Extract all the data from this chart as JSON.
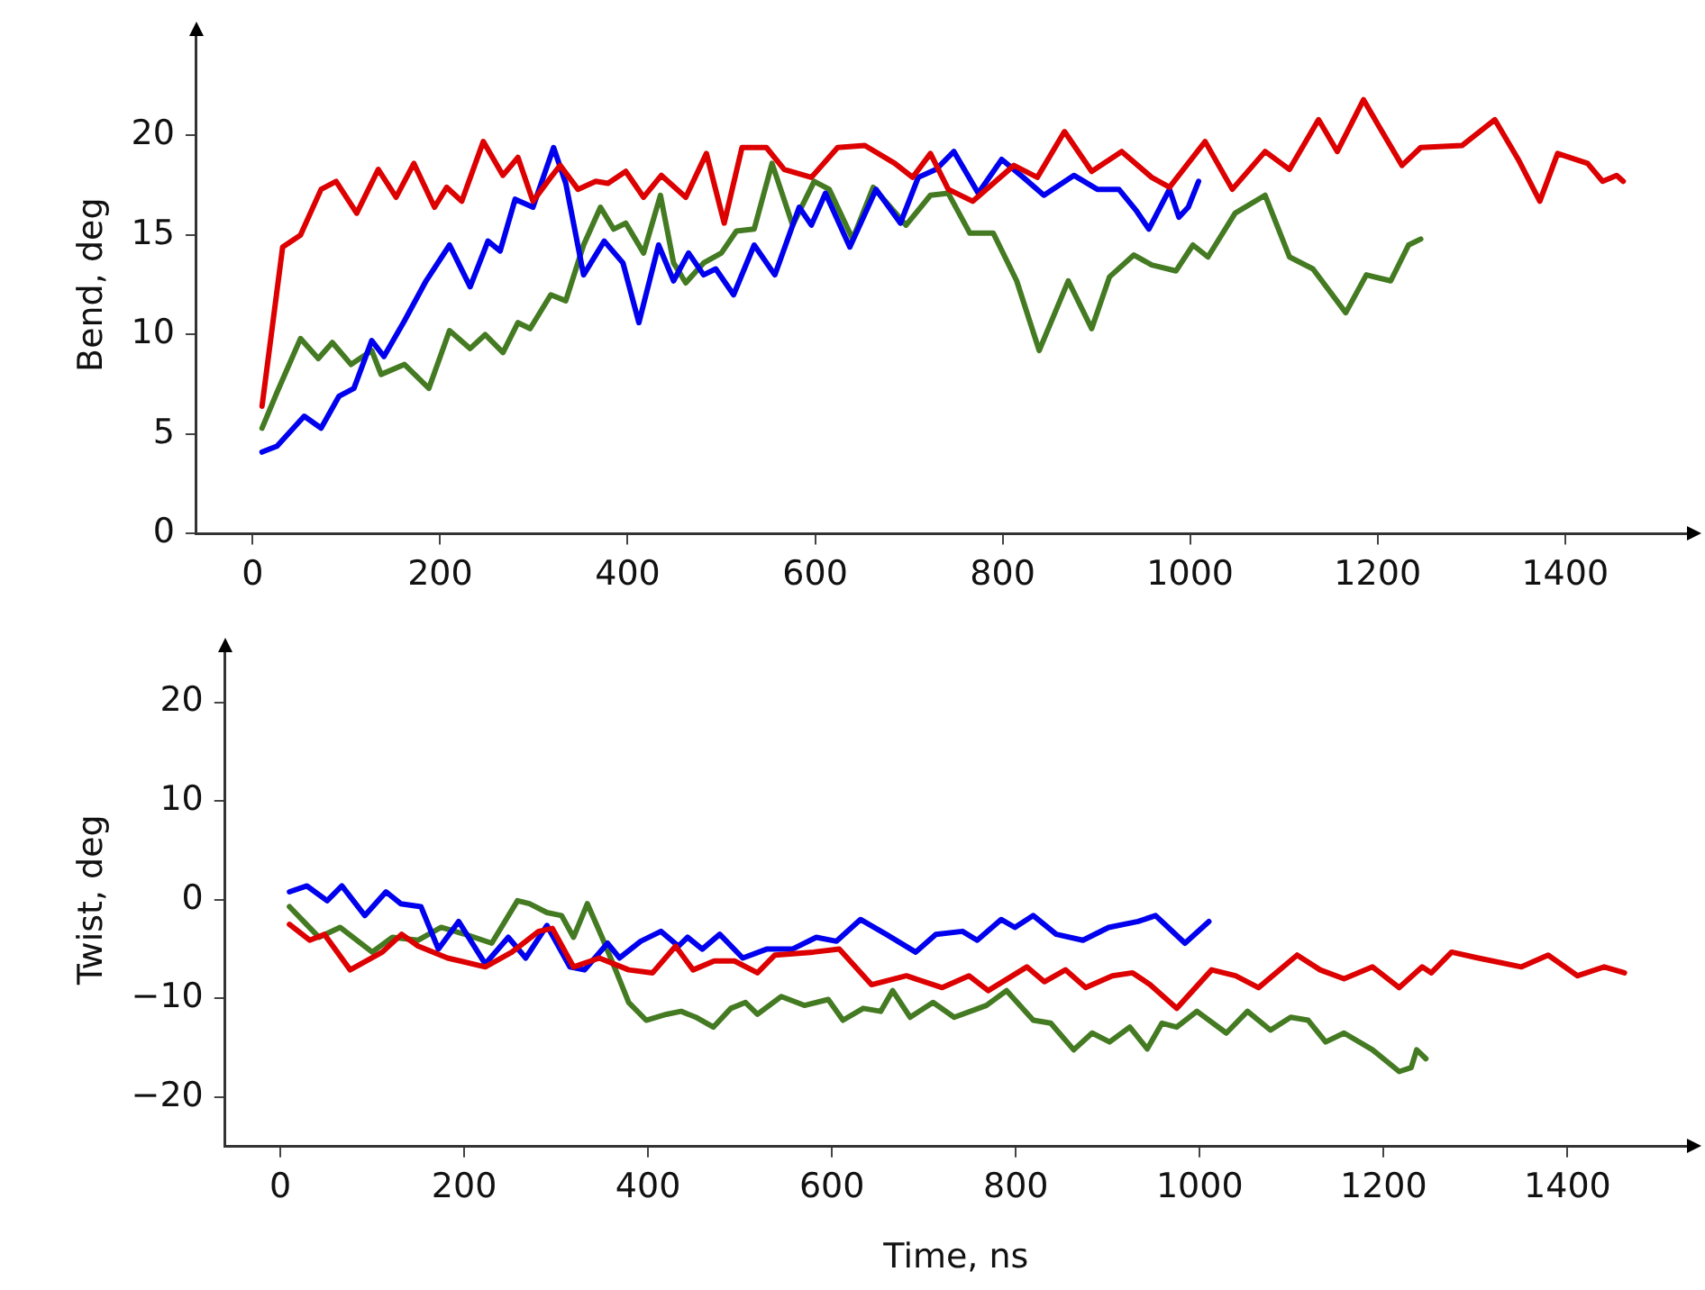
{
  "chart_data": [
    {
      "type": "line",
      "ylabel": "Bend, deg",
      "xlim": [
        -60,
        1530
      ],
      "xticks": [
        0,
        200,
        400,
        600,
        800,
        1000,
        1200,
        1400
      ],
      "ylim": [
        0,
        25
      ],
      "yticks": [
        0,
        5,
        10,
        15,
        20
      ],
      "grid": false,
      "legend": false,
      "marker": "none",
      "line_style": "solid",
      "series": [
        {
          "color": "#dd0000",
          "x": [
            10,
            32,
            51,
            73,
            89,
            111,
            134,
            153,
            172,
            194,
            207,
            223,
            246,
            267,
            283,
            299,
            318,
            328,
            347,
            366,
            379,
            398,
            417,
            436,
            462,
            484,
            503,
            522,
            548,
            567,
            596,
            624,
            653,
            685,
            704,
            723,
            742,
            768,
            812,
            837,
            866,
            895,
            927,
            959,
            978,
            1016,
            1045,
            1080,
            1106,
            1137,
            1157,
            1185,
            1201,
            1226,
            1246,
            1290,
            1325,
            1350,
            1373,
            1392,
            1424,
            1440,
            1455,
            1462
          ],
          "values": [
            6.4,
            14.4,
            15,
            17.3,
            17.7,
            16.1,
            18.3,
            16.9,
            18.6,
            16.4,
            17.4,
            16.7,
            19.7,
            18,
            18.9,
            16.7,
            17.9,
            18.5,
            17.3,
            17.7,
            17.6,
            18.2,
            16.9,
            18,
            16.9,
            19.1,
            15.6,
            19.4,
            19.4,
            18.3,
            17.9,
            19.4,
            19.5,
            18.6,
            17.9,
            19.1,
            17.3,
            16.7,
            18.5,
            17.9,
            20.2,
            18.2,
            19.2,
            17.9,
            17.4,
            19.7,
            17.3,
            19.2,
            18.3,
            20.8,
            19.2,
            21.8,
            20.5,
            18.5,
            19.4,
            19.5,
            20.8,
            18.8,
            16.7,
            19.1,
            18.6,
            17.7,
            18,
            17.7
          ]
        },
        {
          "color": "#0000ee",
          "x": [
            10,
            26,
            55,
            73,
            92,
            108,
            127,
            140,
            162,
            185,
            210,
            232,
            251,
            264,
            280,
            299,
            321,
            334,
            353,
            375,
            395,
            412,
            433,
            449,
            465,
            481,
            494,
            513,
            535,
            557,
            583,
            596,
            611,
            637,
            665,
            691,
            710,
            729,
            748,
            774,
            799,
            822,
            844,
            876,
            901,
            924,
            943,
            956,
            978,
            988,
            998,
            1009
          ],
          "values": [
            4.1,
            4.4,
            5.9,
            5.3,
            6.9,
            7.3,
            9.7,
            8.9,
            10.7,
            12.7,
            14.5,
            12.4,
            14.7,
            14.2,
            16.8,
            16.4,
            19.4,
            17.6,
            13,
            14.7,
            13.6,
            10.6,
            14.5,
            12.7,
            14.1,
            13,
            13.3,
            12,
            14.5,
            13,
            16.4,
            15.5,
            17.1,
            14.4,
            17.3,
            15.6,
            17.9,
            18.3,
            19.2,
            17.1,
            18.8,
            17.9,
            17,
            18,
            17.3,
            17.3,
            16.2,
            15.3,
            17.3,
            15.9,
            16.4,
            17.7
          ]
        },
        {
          "color": "#447a22",
          "x": [
            10,
            26,
            51,
            70,
            85,
            105,
            127,
            137,
            162,
            188,
            210,
            232,
            248,
            267,
            283,
            296,
            318,
            334,
            353,
            371,
            385,
            398,
            417,
            435,
            449,
            462,
            481,
            500,
            516,
            535,
            554,
            576,
            599,
            615,
            640,
            662,
            697,
            723,
            742,
            765,
            790,
            815,
            839,
            870,
            895,
            914,
            940,
            959,
            985,
            1003,
            1019,
            1048,
            1080,
            1106,
            1131,
            1166,
            1188,
            1214,
            1233,
            1246
          ],
          "values": [
            5.3,
            7.1,
            9.8,
            8.8,
            9.6,
            8.5,
            9.2,
            8,
            8.5,
            7.3,
            10.2,
            9.3,
            10,
            9.1,
            10.6,
            10.3,
            12,
            11.7,
            14.5,
            16.4,
            15.3,
            15.6,
            14.1,
            17,
            13.6,
            12.6,
            13.6,
            14.1,
            15.2,
            15.3,
            18.6,
            15.5,
            17.7,
            17.3,
            14.8,
            17.4,
            15.5,
            17,
            17.1,
            15.1,
            15.1,
            12.7,
            9.2,
            12.7,
            10.3,
            12.9,
            14,
            13.5,
            13.2,
            14.5,
            13.9,
            16.1,
            17,
            13.9,
            13.3,
            11.1,
            13,
            12.7,
            14.5,
            14.8
          ]
        }
      ]
    },
    {
      "type": "line",
      "xlabel": "Time, ns",
      "ylabel": "Twist, deg",
      "xlim": [
        -60,
        1530
      ],
      "xticks": [
        0,
        200,
        400,
        600,
        800,
        1000,
        1200,
        1400
      ],
      "ylim": [
        -25,
        25
      ],
      "yticks": [
        -20,
        -10,
        0,
        10,
        20
      ],
      "grid": false,
      "legend": false,
      "marker": "none",
      "line_style": "solid",
      "series": [
        {
          "color": "#dd0000",
          "x": [
            10,
            32,
            48,
            76,
            111,
            132,
            150,
            182,
            223,
            252,
            281,
            296,
            319,
            347,
            379,
            405,
            430,
            449,
            472,
            494,
            519,
            538,
            580,
            608,
            643,
            681,
            720,
            749,
            770,
            812,
            831,
            854,
            876,
            905,
            927,
            946,
            975,
            1013,
            1039,
            1064,
            1106,
            1131,
            1157,
            1188,
            1217,
            1242,
            1252,
            1274,
            1303,
            1350,
            1379,
            1411,
            1440,
            1462
          ],
          "values": [
            -2.5,
            -4.1,
            -3.5,
            -7.1,
            -5.3,
            -3.5,
            -4.7,
            -5.9,
            -6.8,
            -5.3,
            -3.2,
            -2.9,
            -6.8,
            -5.9,
            -7.1,
            -7.4,
            -4.7,
            -7.1,
            -6.2,
            -6.2,
            -7.4,
            -5.6,
            -5.3,
            -5,
            -8.6,
            -7.7,
            -8.9,
            -7.7,
            -9.2,
            -6.8,
            -8.3,
            -7.1,
            -8.9,
            -7.7,
            -7.4,
            -8.6,
            -11,
            -7.1,
            -7.7,
            -8.9,
            -5.6,
            -7.1,
            -8,
            -6.8,
            -8.9,
            -6.8,
            -7.4,
            -5.3,
            -5.9,
            -6.8,
            -5.6,
            -7.7,
            -6.8,
            -7.4
          ]
        },
        {
          "color": "#0000ee",
          "x": [
            10,
            29,
            51,
            67,
            92,
            115,
            131,
            153,
            172,
            194,
            223,
            248,
            267,
            290,
            315,
            331,
            356,
            369,
            392,
            414,
            433,
            443,
            459,
            478,
            503,
            529,
            557,
            583,
            605,
            631,
            659,
            691,
            713,
            742,
            758,
            784,
            799,
            819,
            844,
            873,
            901,
            933,
            952,
            984,
            1010
          ],
          "values": [
            0.8,
            1.4,
            -0.1,
            1.4,
            -1.6,
            0.8,
            -0.4,
            -0.7,
            -5,
            -2.2,
            -6.5,
            -3.8,
            -5.9,
            -2.6,
            -6.8,
            -7.1,
            -4.4,
            -5.9,
            -4.2,
            -3.2,
            -4.7,
            -3.8,
            -5,
            -3.5,
            -5.9,
            -5,
            -5,
            -3.8,
            -4.2,
            -2,
            -3.5,
            -5.3,
            -3.5,
            -3.2,
            -4.1,
            -2,
            -2.8,
            -1.6,
            -3.5,
            -4.1,
            -2.8,
            -2.2,
            -1.6,
            -4.4,
            -2.2
          ]
        },
        {
          "color": "#447a22",
          "x": [
            10,
            42,
            65,
            100,
            122,
            150,
            175,
            201,
            230,
            258,
            271,
            290,
            306,
            319,
            334,
            350,
            366,
            379,
            398,
            420,
            436,
            452,
            471,
            490,
            506,
            519,
            545,
            570,
            596,
            612,
            634,
            653,
            666,
            685,
            710,
            733,
            768,
            790,
            819,
            838,
            863,
            883,
            902,
            924,
            943,
            959,
            975,
            997,
            1029,
            1052,
            1077,
            1099,
            1118,
            1137,
            1157,
            1188,
            1217,
            1230,
            1236,
            1246
          ],
          "values": [
            -0.7,
            -3.8,
            -2.8,
            -5.3,
            -3.8,
            -4.1,
            -2.8,
            -3.5,
            -4.4,
            -0.1,
            -0.4,
            -1.3,
            -1.6,
            -3.8,
            -0.4,
            -3.8,
            -7.4,
            -10.4,
            -12.2,
            -11.6,
            -11.3,
            -11.9,
            -12.9,
            -11,
            -10.4,
            -11.6,
            -9.8,
            -10.7,
            -10.1,
            -12.2,
            -11,
            -11.3,
            -9.2,
            -11.9,
            -10.4,
            -11.9,
            -10.7,
            -9.2,
            -12.2,
            -12.5,
            -15.2,
            -13.5,
            -14.4,
            -12.9,
            -15.1,
            -12.5,
            -12.9,
            -11.3,
            -13.5,
            -11.3,
            -13.2,
            -11.9,
            -12.2,
            -14.4,
            -13.5,
            -15.2,
            -17.4,
            -17,
            -15.2,
            -16.1
          ]
        }
      ]
    }
  ]
}
